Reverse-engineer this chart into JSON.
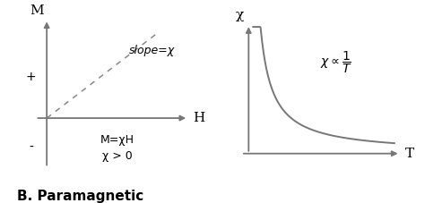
{
  "fig_width": 4.74,
  "fig_height": 2.27,
  "dpi": 100,
  "background_color": "#ffffff",
  "axis_color": "#777777",
  "left_plot": {
    "xlabel": "H",
    "ylabel": "M",
    "plus_label": "+",
    "minus_label": "-",
    "slope_label": "slope=χ",
    "eq_label1": "M=χH",
    "eq_label2": "χ > 0",
    "line_color": "#777777",
    "dashed_color": "#888888"
  },
  "right_plot": {
    "xlabel": "T",
    "ylabel": "χ",
    "curve_color": "#777777"
  },
  "title": "B. Paramagnetic",
  "title_fontsize": 11,
  "title_fontweight": "bold"
}
